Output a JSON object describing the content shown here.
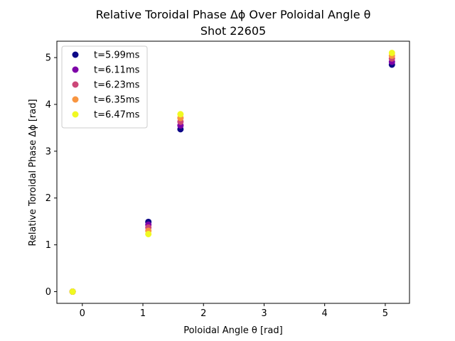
{
  "chart_data": {
    "type": "scatter",
    "title": "Relative Toroidal Phase Δϕ Over Poloidal Angle θ",
    "subtitle": "Shot 22605",
    "xlabel": "Poloidal Angle θ [rad]",
    "ylabel": "Relative Toroidal Phase Δϕ [rad]",
    "xlim": [
      -0.42,
      5.4
    ],
    "ylim": [
      -0.25,
      5.35
    ],
    "x_ticks": [
      0,
      1,
      2,
      3,
      4,
      5
    ],
    "y_ticks": [
      0,
      1,
      2,
      3,
      4,
      5
    ],
    "grid": false,
    "legend_position": "upper-left",
    "x": [
      -0.16,
      1.09,
      1.62,
      5.11
    ],
    "series": [
      {
        "name": "t=5.99ms",
        "color": "#0d0887",
        "values": [
          0.0,
          1.49,
          3.47,
          4.85
        ]
      },
      {
        "name": "t=6.11ms",
        "color": "#7e03a8",
        "values": [
          0.0,
          1.43,
          3.55,
          4.91
        ]
      },
      {
        "name": "t=6.23ms",
        "color": "#cc4778",
        "values": [
          0.0,
          1.37,
          3.63,
          4.98
        ]
      },
      {
        "name": "t=6.35ms",
        "color": "#f89540",
        "values": [
          0.0,
          1.3,
          3.71,
          5.04
        ]
      },
      {
        "name": "t=6.47ms",
        "color": "#f0f921",
        "values": [
          0.0,
          1.23,
          3.79,
          5.1
        ]
      }
    ]
  }
}
